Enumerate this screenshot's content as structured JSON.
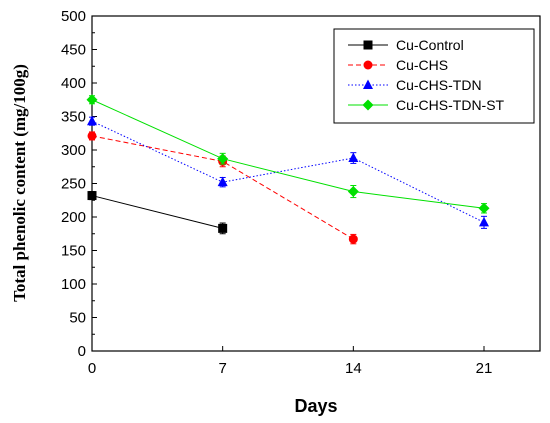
{
  "chart_data": {
    "type": "line",
    "xlabel": "Days",
    "ylabel": "Total phenolic content (mg/100g)",
    "xlim": [
      0,
      24
    ],
    "ylim": [
      0,
      500
    ],
    "xticks": [
      0,
      7,
      14,
      21
    ],
    "yticks": [
      0,
      50,
      100,
      150,
      200,
      250,
      300,
      350,
      400,
      450,
      500
    ],
    "grid": false,
    "legend_position": "top-right",
    "series": [
      {
        "name": "Cu-Control",
        "color": "#000000",
        "marker": "square",
        "dash": "solid",
        "x": [
          0,
          7
        ],
        "y": [
          232,
          183
        ],
        "err": [
          6,
          8
        ]
      },
      {
        "name": "Cu-CHS",
        "color": "#ff0000",
        "marker": "circle",
        "dash": "dashed",
        "x": [
          0,
          7,
          14
        ],
        "y": [
          321,
          283,
          167
        ],
        "err": [
          6,
          8,
          7
        ]
      },
      {
        "name": "Cu-CHS-TDN",
        "color": "#0000ff",
        "marker": "triangle",
        "dash": "dotted",
        "x": [
          0,
          7,
          14,
          21
        ],
        "y": [
          343,
          252,
          288,
          192
        ],
        "err": [
          6,
          7,
          8,
          9
        ]
      },
      {
        "name": "Cu-CHS-TDN-ST",
        "color": "#00e000",
        "marker": "diamond",
        "dash": "solid",
        "x": [
          0,
          7,
          14,
          21
        ],
        "y": [
          375,
          287,
          238,
          213
        ],
        "err": [
          6,
          8,
          9,
          7
        ]
      }
    ]
  }
}
